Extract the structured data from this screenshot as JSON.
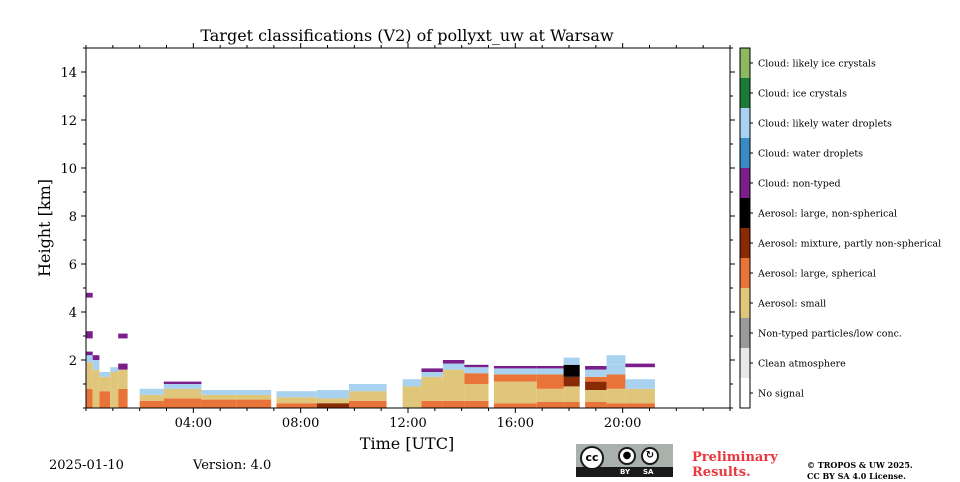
{
  "chart_data": {
    "type": "heatmap",
    "title": "Target classifications (V2) of pollyxt_uw at Warsaw",
    "xlabel": "Time [UTC]",
    "ylabel": "Height [km]",
    "xlim": [
      0,
      24
    ],
    "ylim": [
      0,
      15
    ],
    "xticks": [
      {
        "v": 4,
        "label": "04:00"
      },
      {
        "v": 8,
        "label": "08:00"
      },
      {
        "v": 12,
        "label": "12:00"
      },
      {
        "v": 16,
        "label": "16:00"
      },
      {
        "v": 20,
        "label": "20:00"
      }
    ],
    "yticks": [
      {
        "v": 2,
        "label": "2"
      },
      {
        "v": 4,
        "label": "4"
      },
      {
        "v": 6,
        "label": "6"
      },
      {
        "v": 8,
        "label": "8"
      },
      {
        "v": 10,
        "label": "10"
      },
      {
        "v": 12,
        "label": "12"
      },
      {
        "v": 14,
        "label": "14"
      }
    ],
    "grid": false,
    "classes": [
      {
        "id": 0,
        "label": "No signal",
        "color": "#ffffff"
      },
      {
        "id": 1,
        "label": "Clean atmosphere",
        "color": "#e8e8e8"
      },
      {
        "id": 2,
        "label": "Non-typed particles/low conc.",
        "color": "#9a9a9a"
      },
      {
        "id": 3,
        "label": "Aerosol: small",
        "color": "#dfc67a"
      },
      {
        "id": 4,
        "label": "Aerosol: large, spherical",
        "color": "#e9743a"
      },
      {
        "id": 5,
        "label": "Aerosol: mixture, partly non-spherical",
        "color": "#8a2a05"
      },
      {
        "id": 6,
        "label": "Aerosol: large, non-spherical",
        "color": "#000000"
      },
      {
        "id": 7,
        "label": "Cloud: non-typed",
        "color": "#7a1f8a"
      },
      {
        "id": 8,
        "label": "Cloud: water droplets",
        "color": "#3a8ac8"
      },
      {
        "id": 9,
        "label": "Cloud: likely water droplets",
        "color": "#a8d2f0"
      },
      {
        "id": 10,
        "label": "Cloud: ice crystals",
        "color": "#1a7a3a"
      },
      {
        "id": 11,
        "label": "Cloud: likely ice crystals",
        "color": "#8cb85e"
      }
    ],
    "segments": [
      {
        "x": [
          0.0,
          0.25
        ],
        "layers": [
          [
            0,
            0.8,
            4
          ],
          [
            0.8,
            1.9,
            3
          ],
          [
            1.9,
            2.2,
            9
          ],
          [
            2.2,
            2.35,
            7
          ],
          [
            2.9,
            3.2,
            7
          ],
          [
            4.6,
            4.8,
            7
          ]
        ]
      },
      {
        "x": [
          0.25,
          0.5
        ],
        "layers": [
          [
            0,
            1.6,
            3
          ],
          [
            1.6,
            2.0,
            9
          ],
          [
            2.0,
            2.2,
            7
          ]
        ]
      },
      {
        "x": [
          0.5,
          0.9
        ],
        "layers": [
          [
            0,
            0.7,
            4
          ],
          [
            0.7,
            1.3,
            3
          ],
          [
            1.3,
            1.5,
            9
          ]
        ]
      },
      {
        "x": [
          0.9,
          1.2
        ],
        "layers": [
          [
            0,
            1.5,
            3
          ],
          [
            1.5,
            1.7,
            9
          ]
        ]
      },
      {
        "x": [
          1.2,
          1.55
        ],
        "layers": [
          [
            0,
            0.8,
            4
          ],
          [
            0.8,
            1.6,
            3
          ],
          [
            1.6,
            1.85,
            7
          ],
          [
            2.9,
            3.1,
            7
          ]
        ]
      },
      {
        "x": [
          2.0,
          2.9
        ],
        "layers": [
          [
            0,
            0.3,
            4
          ],
          [
            0.3,
            0.55,
            3
          ],
          [
            0.55,
            0.8,
            9
          ]
        ]
      },
      {
        "x": [
          2.9,
          4.3
        ],
        "layers": [
          [
            0,
            0.4,
            4
          ],
          [
            0.4,
            0.8,
            3
          ],
          [
            0.8,
            1.0,
            9
          ],
          [
            1.0,
            1.1,
            7
          ]
        ]
      },
      {
        "x": [
          4.3,
          5.6
        ],
        "layers": [
          [
            0,
            0.35,
            4
          ],
          [
            0.35,
            0.55,
            3
          ],
          [
            0.55,
            0.75,
            9
          ]
        ]
      },
      {
        "x": [
          5.6,
          6.9
        ],
        "layers": [
          [
            0,
            0.35,
            4
          ],
          [
            0.35,
            0.55,
            3
          ],
          [
            0.55,
            0.75,
            9
          ]
        ]
      },
      {
        "x": [
          7.1,
          8.6
        ],
        "layers": [
          [
            0,
            0.2,
            4
          ],
          [
            0.2,
            0.45,
            3
          ],
          [
            0.45,
            0.7,
            9
          ]
        ]
      },
      {
        "x": [
          8.6,
          9.8
        ],
        "layers": [
          [
            0,
            0.2,
            5
          ],
          [
            0.2,
            0.4,
            3
          ],
          [
            0.4,
            0.75,
            9
          ]
        ]
      },
      {
        "x": [
          9.8,
          11.2
        ],
        "layers": [
          [
            0,
            0.3,
            4
          ],
          [
            0.3,
            0.7,
            3
          ],
          [
            0.7,
            1.0,
            9
          ]
        ]
      },
      {
        "x": [
          11.8,
          12.5
        ],
        "layers": [
          [
            0,
            0.9,
            3
          ],
          [
            0.9,
            1.2,
            9
          ]
        ]
      },
      {
        "x": [
          12.5,
          13.3
        ],
        "layers": [
          [
            0,
            0.3,
            4
          ],
          [
            0.3,
            1.3,
            3
          ],
          [
            1.3,
            1.5,
            9
          ],
          [
            1.5,
            1.65,
            7
          ]
        ]
      },
      {
        "x": [
          13.3,
          14.1
        ],
        "layers": [
          [
            0,
            0.3,
            4
          ],
          [
            0.3,
            1.6,
            3
          ],
          [
            1.6,
            1.85,
            9
          ],
          [
            1.85,
            2.0,
            7
          ]
        ]
      },
      {
        "x": [
          14.1,
          15.0
        ],
        "layers": [
          [
            0,
            0.3,
            4
          ],
          [
            0.3,
            1.0,
            3
          ],
          [
            1.0,
            1.45,
            4
          ],
          [
            1.45,
            1.7,
            9
          ],
          [
            1.7,
            1.8,
            7
          ]
        ]
      },
      {
        "x": [
          15.2,
          16.8
        ],
        "layers": [
          [
            0,
            0.2,
            4
          ],
          [
            0.2,
            1.1,
            3
          ],
          [
            1.1,
            1.4,
            4
          ],
          [
            1.4,
            1.65,
            9
          ],
          [
            1.65,
            1.75,
            7
          ]
        ]
      },
      {
        "x": [
          16.8,
          17.8
        ],
        "layers": [
          [
            0,
            0.25,
            4
          ],
          [
            0.25,
            0.8,
            3
          ],
          [
            0.8,
            1.4,
            4
          ],
          [
            1.4,
            1.65,
            9
          ],
          [
            1.65,
            1.75,
            7
          ]
        ]
      },
      {
        "x": [
          17.8,
          18.4
        ],
        "layers": [
          [
            0,
            0.25,
            4
          ],
          [
            0.25,
            0.9,
            3
          ],
          [
            0.9,
            1.3,
            5
          ],
          [
            1.3,
            1.8,
            6
          ],
          [
            1.8,
            2.1,
            9
          ]
        ]
      },
      {
        "x": [
          18.6,
          19.4
        ],
        "layers": [
          [
            0,
            0.25,
            4
          ],
          [
            0.25,
            0.75,
            3
          ],
          [
            0.75,
            1.1,
            5
          ],
          [
            1.1,
            1.3,
            4
          ],
          [
            1.3,
            1.6,
            9
          ],
          [
            1.6,
            1.75,
            7
          ]
        ]
      },
      {
        "x": [
          19.4,
          20.1
        ],
        "layers": [
          [
            0,
            0.2,
            4
          ],
          [
            0.2,
            0.8,
            3
          ],
          [
            0.8,
            1.4,
            4
          ],
          [
            1.4,
            1.8,
            9
          ],
          [
            1.8,
            2.2,
            9
          ]
        ]
      },
      {
        "x": [
          20.1,
          21.2
        ],
        "layers": [
          [
            0,
            0.2,
            4
          ],
          [
            0.2,
            0.8,
            3
          ],
          [
            0.8,
            1.2,
            9
          ],
          [
            1.7,
            1.85,
            7
          ]
        ]
      }
    ]
  },
  "footer": {
    "date": "2025-01-10",
    "version": "Version: 4.0",
    "preliminary_line1": "Preliminary",
    "preliminary_line2": "Results.",
    "copyright_line1": "© TROPOS & UW 2025.",
    "copyright_line2": "CC BY SA 4.0 License.",
    "license_badge": {
      "cc": "cc",
      "by": "BY",
      "sa": "SA"
    }
  }
}
